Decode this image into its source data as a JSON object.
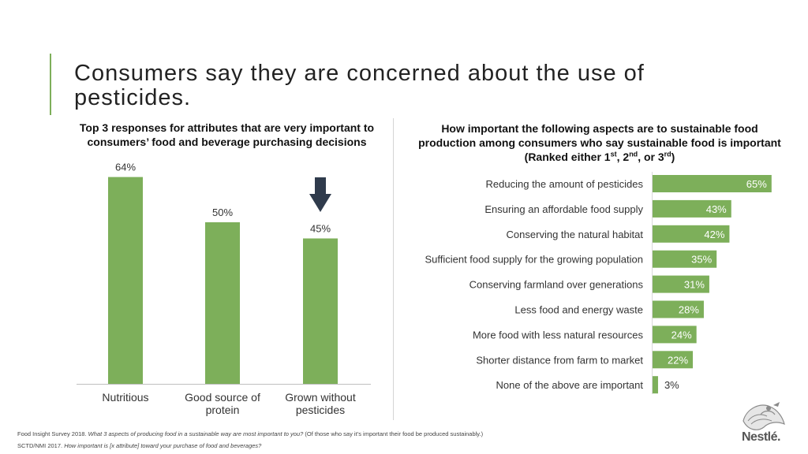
{
  "slide": {
    "title": "Consumers say they are concerned about the use of pesticides."
  },
  "left": {
    "heading_line1": "Top 3 responses for attributes that are very important to",
    "heading_line2": "consumers’ food and beverage purchasing decisions"
  },
  "right": {
    "heading_line1": "How important the following aspects are to sustainable food",
    "heading_line2": "production among consumers who say sustainable food is important",
    "heading_line3_prefix": "(Ranked either 1",
    "sup1": "st",
    "sep1": ", 2",
    "sup2": "nd",
    "sep2": ", or 3",
    "sup3": "rd",
    "heading_line3_suffix": ")"
  },
  "chart_data": [
    {
      "type": "bar",
      "orientation": "vertical",
      "title": "Top 3 responses for attributes that are very important to consumers’ food and beverage purchasing decisions",
      "categories": [
        "Nutritious",
        "Good source of protein",
        "Grown without pesticides"
      ],
      "category_lines": [
        [
          "Nutritious"
        ],
        [
          "Good source of",
          "protein"
        ],
        [
          "Grown without",
          "pesticides"
        ]
      ],
      "values": [
        64,
        50,
        45
      ],
      "labels": [
        "64%",
        "50%",
        "45%"
      ],
      "unit": "%",
      "ylim": [
        0,
        70
      ],
      "color": "#7daf5a",
      "highlight_index": 2,
      "highlight_arrow_color": "#2f3b4c"
    },
    {
      "type": "bar",
      "orientation": "horizontal",
      "title": "How important the following aspects are to sustainable food production among consumers who say sustainable food is important (Ranked either 1st, 2nd, or 3rd)",
      "categories": [
        "Reducing the amount of pesticides",
        "Ensuring an affordable food supply",
        "Conserving the natural habitat",
        "Sufficient food supply for the growing population",
        "Conserving farmland over  generations",
        "Less food and energy waste",
        "More food with less natural resources",
        "Shorter distance from farm to market",
        "None of the above are important"
      ],
      "values": [
        65,
        43,
        42,
        35,
        31,
        28,
        24,
        22,
        3
      ],
      "labels": [
        "65%",
        "43%",
        "42%",
        "35%",
        "31%",
        "28%",
        "24%",
        "22%",
        "3%"
      ],
      "unit": "%",
      "xlim": [
        0,
        65
      ],
      "color": "#7daf5a"
    }
  ],
  "footer": {
    "line1_source": "Food Insight Survey 2018.",
    "line1_question": "What 3 aspects of producing food in a sustainable way are most important to you?",
    "line1_note": "(Of those who say it’s important their food be produced sustainably.)",
    "line2_source": "SCTD/NMI 2017.",
    "line2_question": "How important is [x attribute] toward your purchase of food and beverages?"
  },
  "brand": {
    "logo_icon": "nest-birds-icon",
    "logo_text": "Nestlé."
  },
  "colors": {
    "bar": "#7daf5a",
    "accent": "#7daf5a",
    "arrow": "#2f3b4c",
    "bar_label_inside": "#ffffff"
  }
}
